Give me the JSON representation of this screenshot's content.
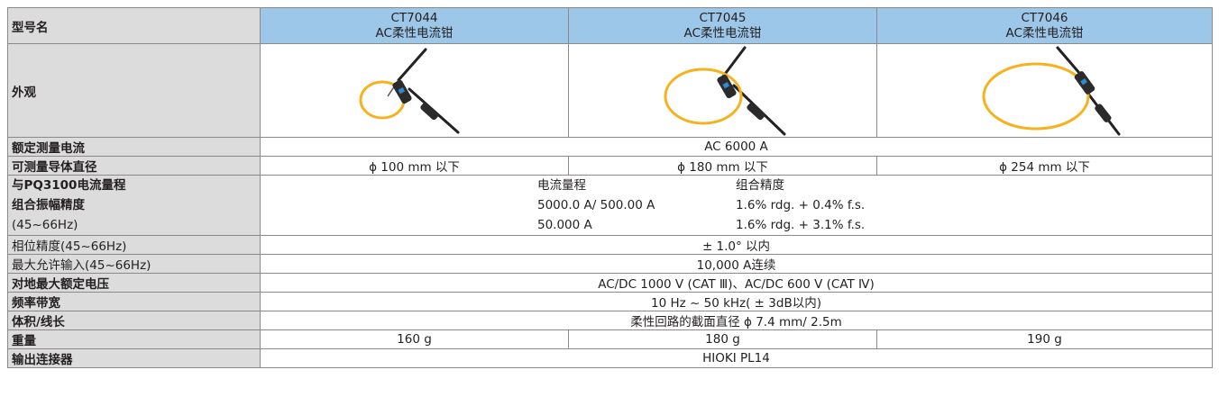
{
  "rows": {
    "model": {
      "label": "型号名",
      "models": [
        {
          "code": "CT7044",
          "desc": "AC柔性电流钳"
        },
        {
          "code": "CT7045",
          "desc": "AC柔性电流钳"
        },
        {
          "code": "CT7046",
          "desc": "AC柔性电流钳"
        }
      ]
    },
    "appearance": {
      "label": "外观",
      "image_color": "#f5b21e"
    },
    "rated_current": {
      "label": "额定测量电流",
      "value": "AC 6000 A"
    },
    "conductor_diameter": {
      "label": "可测量导体直径",
      "values": [
        "ϕ 100 mm 以下",
        "ϕ 180 mm 以下",
        "ϕ 254 mm 以下"
      ]
    },
    "combined_accuracy": {
      "label_lines": [
        "与PQ3100电流量程",
        "组合振幅精度",
        "(45~66Hz)"
      ],
      "header": [
        "电流量程",
        "组合精度"
      ],
      "entries": [
        [
          "5000.0 A/ 500.00 A",
          "1.6% rdg. + 0.4% f.s."
        ],
        [
          "50.000 A",
          "1.6% rdg. + 3.1% f.s."
        ]
      ]
    },
    "phase_accuracy": {
      "label": "相位精度(45~66Hz)",
      "value": "± 1.0°  以内"
    },
    "max_input": {
      "label": "最大允许输入(45~66Hz)",
      "value": "10,000 A连续"
    },
    "max_voltage": {
      "label": "对地最大额定电压",
      "value": "AC/DC 1000 V (CAT Ⅲ)、AC/DC 600 V (CAT Ⅳ)"
    },
    "bandwidth": {
      "label": "频率带宽",
      "value": "10 Hz ~ 50 kHz( ± 3dB以内)"
    },
    "size": {
      "label": "体积/线长",
      "value": "柔性回路的截面直径 ϕ 7.4 mm/ 2.5m"
    },
    "weight": {
      "label": "重量",
      "values": [
        "160 g",
        "180 g",
        "190 g"
      ]
    },
    "connector": {
      "label": "输出连接器",
      "value": "HIOKI PL14"
    }
  }
}
